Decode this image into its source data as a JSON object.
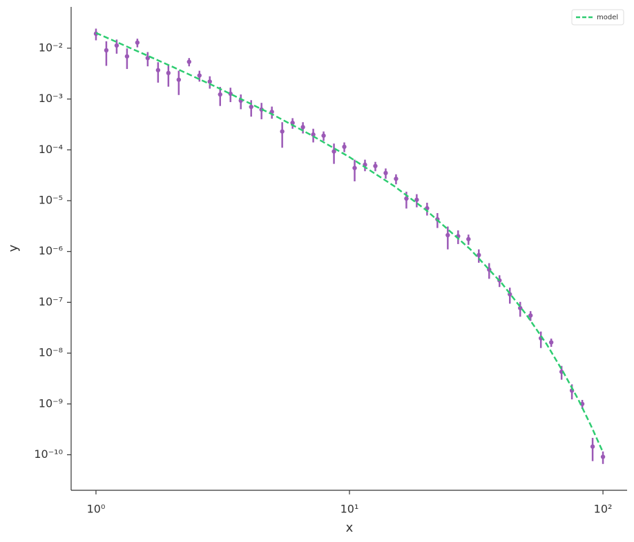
{
  "chart_data": {
    "type": "line",
    "xlabel": "x",
    "ylabel": "y",
    "xscale": "log",
    "yscale": "log",
    "xlim": [
      0.798,
      124.5
    ],
    "ylim": [
      2e-11,
      0.065
    ],
    "xticks": [
      {
        "value": 1,
        "label": "10⁰"
      },
      {
        "value": 10,
        "label": "10¹"
      },
      {
        "value": 100,
        "label": "10²"
      }
    ],
    "yticks": [
      {
        "value": 0.01,
        "label": "10⁻²"
      },
      {
        "value": 0.001,
        "label": "10⁻³"
      },
      {
        "value": 0.0001,
        "label": "10⁻⁴"
      },
      {
        "value": 1e-05,
        "label": "10⁻⁵"
      },
      {
        "value": 1e-06,
        "label": "10⁻⁶"
      },
      {
        "value": 1e-07,
        "label": "10⁻⁷"
      },
      {
        "value": 1e-08,
        "label": "10⁻⁸"
      },
      {
        "value": 1e-09,
        "label": "10⁻⁹"
      },
      {
        "value": 1e-10,
        "label": "10⁻¹⁰"
      }
    ],
    "legend": "upper right",
    "series": [
      {
        "style": "errorbar",
        "color": "#9b59b6",
        "x": [
          1,
          1.0985,
          1.2068,
          1.3257,
          1.4563,
          1.5999,
          1.7575,
          1.9307,
          2.121,
          2.33,
          2.5595,
          2.8118,
          3.0888,
          3.3932,
          3.7276,
          4.0949,
          4.4984,
          4.9417,
          5.4287,
          5.9636,
          6.5513,
          7.1969,
          7.906,
          8.6851,
          9.541,
          10.481,
          11.514,
          12.649,
          13.895,
          15.264,
          16.768,
          18.421,
          20.236,
          22.23,
          24.421,
          26.827,
          29.471,
          32.375,
          35.565,
          39.069,
          42.919,
          47.149,
          51.795,
          56.899,
          62.506,
          68.665,
          75.431,
          82.864,
          91.03,
          100
        ],
        "values": [
          0.0193,
          0.0091,
          0.0113,
          0.0069,
          0.0129,
          0.0064,
          0.0037,
          0.00325,
          0.0024,
          0.0054,
          0.0029,
          0.0022,
          0.00123,
          0.00127,
          0.00093,
          0.0007,
          0.00062,
          0.00056,
          0.00023,
          0.00034,
          0.00028,
          0.0002,
          0.00019,
          9.3e-05,
          0.000115,
          4.4e-05,
          5.1e-05,
          4.8e-05,
          3.5e-05,
          2.7e-05,
          1.1e-05,
          1.04e-05,
          7.1e-06,
          4.3e-06,
          2.1e-06,
          2e-06,
          1.75e-06,
          8.5e-07,
          4.4e-07,
          2.7e-07,
          1.44e-07,
          7.7e-08,
          5.5e-08,
          1.96e-08,
          1.63e-08,
          4.3e-09,
          1.83e-09,
          1e-09,
          1.45e-10,
          9.1e-11
        ],
        "errors": [
          0.005,
          0.0046,
          0.0035,
          0.003,
          0.0025,
          0.002,
          0.0016,
          0.0015,
          0.0012,
          0.001,
          0.0007,
          0.0006,
          0.0005,
          0.0004,
          0.0003,
          0.00025,
          0.00022,
          0.00015,
          0.00012,
          8e-05,
          7e-05,
          6e-05,
          4e-05,
          4e-05,
          2.5e-05,
          2e-05,
          1.3e-05,
          1e-05,
          8e-06,
          6e-06,
          4e-06,
          3e-06,
          2e-06,
          1.4e-06,
          1e-06,
          6e-07,
          4e-07,
          2.5e-07,
          1.5e-07,
          7e-08,
          5e-08,
          2.5e-08,
          1.2e-08,
          7e-09,
          3e-09,
          1.3e-09,
          6e-10,
          2e-10,
          7e-11,
          2.5e-11
        ]
      },
      {
        "name": "model",
        "style": "dashed",
        "color": "#2ecc71",
        "x": [
          1,
          1.5,
          2,
          3,
          5,
          7,
          10,
          15,
          20,
          30,
          40,
          50,
          60,
          70,
          80,
          90,
          100
        ],
        "values": [
          0.02,
          0.0082,
          0.00433,
          0.0017,
          0.00049,
          0.0002,
          7.2e-05,
          1.94e-05,
          6.6e-06,
          1.1e-06,
          2.33e-07,
          5.6e-08,
          1.49e-08,
          4.1e-09,
          1.21e-09,
          3.6e-10,
          1.12e-10
        ]
      }
    ]
  }
}
